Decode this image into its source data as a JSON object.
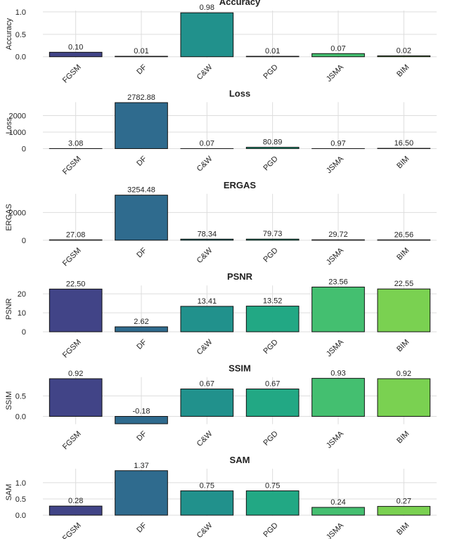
{
  "chart_data": [
    {
      "type": "bar",
      "title": "Accuracy",
      "ylabel": "Accuracy",
      "categories": [
        "FGSM",
        "DF",
        "C&W",
        "PGD",
        "JSMA",
        "BIM"
      ],
      "values": [
        0.1,
        0.01,
        0.98,
        0.01,
        0.07,
        0.02
      ],
      "value_labels": [
        "0.10",
        "0.01",
        "0.98",
        "0.01",
        "0.07",
        "0.02"
      ],
      "colors": [
        "#414487",
        "#2f6b8e",
        "#21918c",
        "#22a884",
        "#44bf70",
        "#7ad151"
      ],
      "ylim": [
        -0.02,
        1.03
      ],
      "yticks": [
        {
          "value": 0,
          "label": "0.0"
        },
        {
          "value": 0.5,
          "label": "0.5"
        },
        {
          "value": 1,
          "label": "1.0"
        }
      ],
      "grid": true
    },
    {
      "type": "bar",
      "title": "Loss",
      "ylabel": "Loss",
      "categories": [
        "FGSM",
        "DF",
        "C&W",
        "PGD",
        "JSMA",
        "BIM"
      ],
      "values": [
        3.08,
        2782.88,
        0.07,
        80.89,
        0.97,
        16.5
      ],
      "value_labels": [
        "3.08",
        "2782.88",
        "0.07",
        "80.89",
        "0.97",
        "16.50"
      ],
      "colors": [
        "#414487",
        "#2f6b8e",
        "#21918c",
        "#22a884",
        "#44bf70",
        "#7ad151"
      ],
      "ylim": [
        -40,
        2810
      ],
      "yticks": [
        0,
        1000,
        2000
      ],
      "grid": true
    },
    {
      "type": "bar",
      "title": "ERGAS",
      "ylabel": "ERGAS",
      "categories": [
        "FGSM",
        "DF",
        "C&W",
        "PGD",
        "JSMA",
        "BIM"
      ],
      "values": [
        27.08,
        3254.48,
        78.34,
        79.73,
        29.72,
        26.56
      ],
      "value_labels": [
        "27.08",
        "3254.48",
        "78.34",
        "79.73",
        "29.72",
        "26.56"
      ],
      "colors": [
        "#414487",
        "#2f6b8e",
        "#21918c",
        "#22a884",
        "#44bf70",
        "#7ad151"
      ],
      "ylim": [
        -50,
        3350
      ],
      "yticks": [
        0,
        2000
      ],
      "grid": true
    },
    {
      "type": "bar",
      "title": "PSNR",
      "ylabel": "PSNR",
      "categories": [
        "FGSM",
        "DF",
        "C&W",
        "PGD",
        "JSMA",
        "BIM"
      ],
      "values": [
        22.5,
        2.62,
        13.41,
        13.52,
        23.56,
        22.55
      ],
      "value_labels": [
        "22.50",
        "2.62",
        "13.41",
        "13.52",
        "23.56",
        "22.55"
      ],
      "colors": [
        "#414487",
        "#2f6b8e",
        "#21918c",
        "#22a884",
        "#44bf70",
        "#7ad151"
      ],
      "ylim": [
        -0.4,
        24.4
      ],
      "yticks": [
        0,
        10,
        20
      ],
      "grid": true
    },
    {
      "type": "bar",
      "title": "SSIM",
      "ylabel": "SSIM",
      "categories": [
        "FGSM",
        "DF",
        "C&W",
        "PGD",
        "JSMA",
        "BIM"
      ],
      "values": [
        0.92,
        -0.18,
        0.67,
        0.67,
        0.93,
        0.92
      ],
      "value_labels": [
        "0.92",
        "-0.18",
        "0.67",
        "0.67",
        "0.93",
        "0.92"
      ],
      "colors": [
        "#414487",
        "#2f6b8e",
        "#21918c",
        "#22a884",
        "#44bf70",
        "#7ad151"
      ],
      "ylim": [
        -0.19,
        0.96
      ],
      "yticks": [
        {
          "value": 0,
          "label": "0.0"
        },
        {
          "value": 0.5,
          "label": "0.5"
        }
      ],
      "grid": true
    },
    {
      "type": "bar",
      "title": "SAM",
      "ylabel": "SAM",
      "categories": [
        "FGSM",
        "DF",
        "C&W",
        "PGD",
        "JSMA",
        "BIM"
      ],
      "values": [
        0.28,
        1.37,
        0.75,
        0.75,
        0.24,
        0.27
      ],
      "value_labels": [
        "0.28",
        "1.37",
        "0.75",
        "0.75",
        "0.24",
        "0.27"
      ],
      "colors": [
        "#414487",
        "#2f6b8e",
        "#21918c",
        "#22a884",
        "#44bf70",
        "#7ad151"
      ],
      "ylim": [
        -0.02,
        1.43
      ],
      "yticks": [
        {
          "value": 0,
          "label": "0.0"
        },
        {
          "value": 0.5,
          "label": "0.5"
        },
        {
          "value": 1,
          "label": "1.0"
        }
      ],
      "grid": true
    }
  ]
}
